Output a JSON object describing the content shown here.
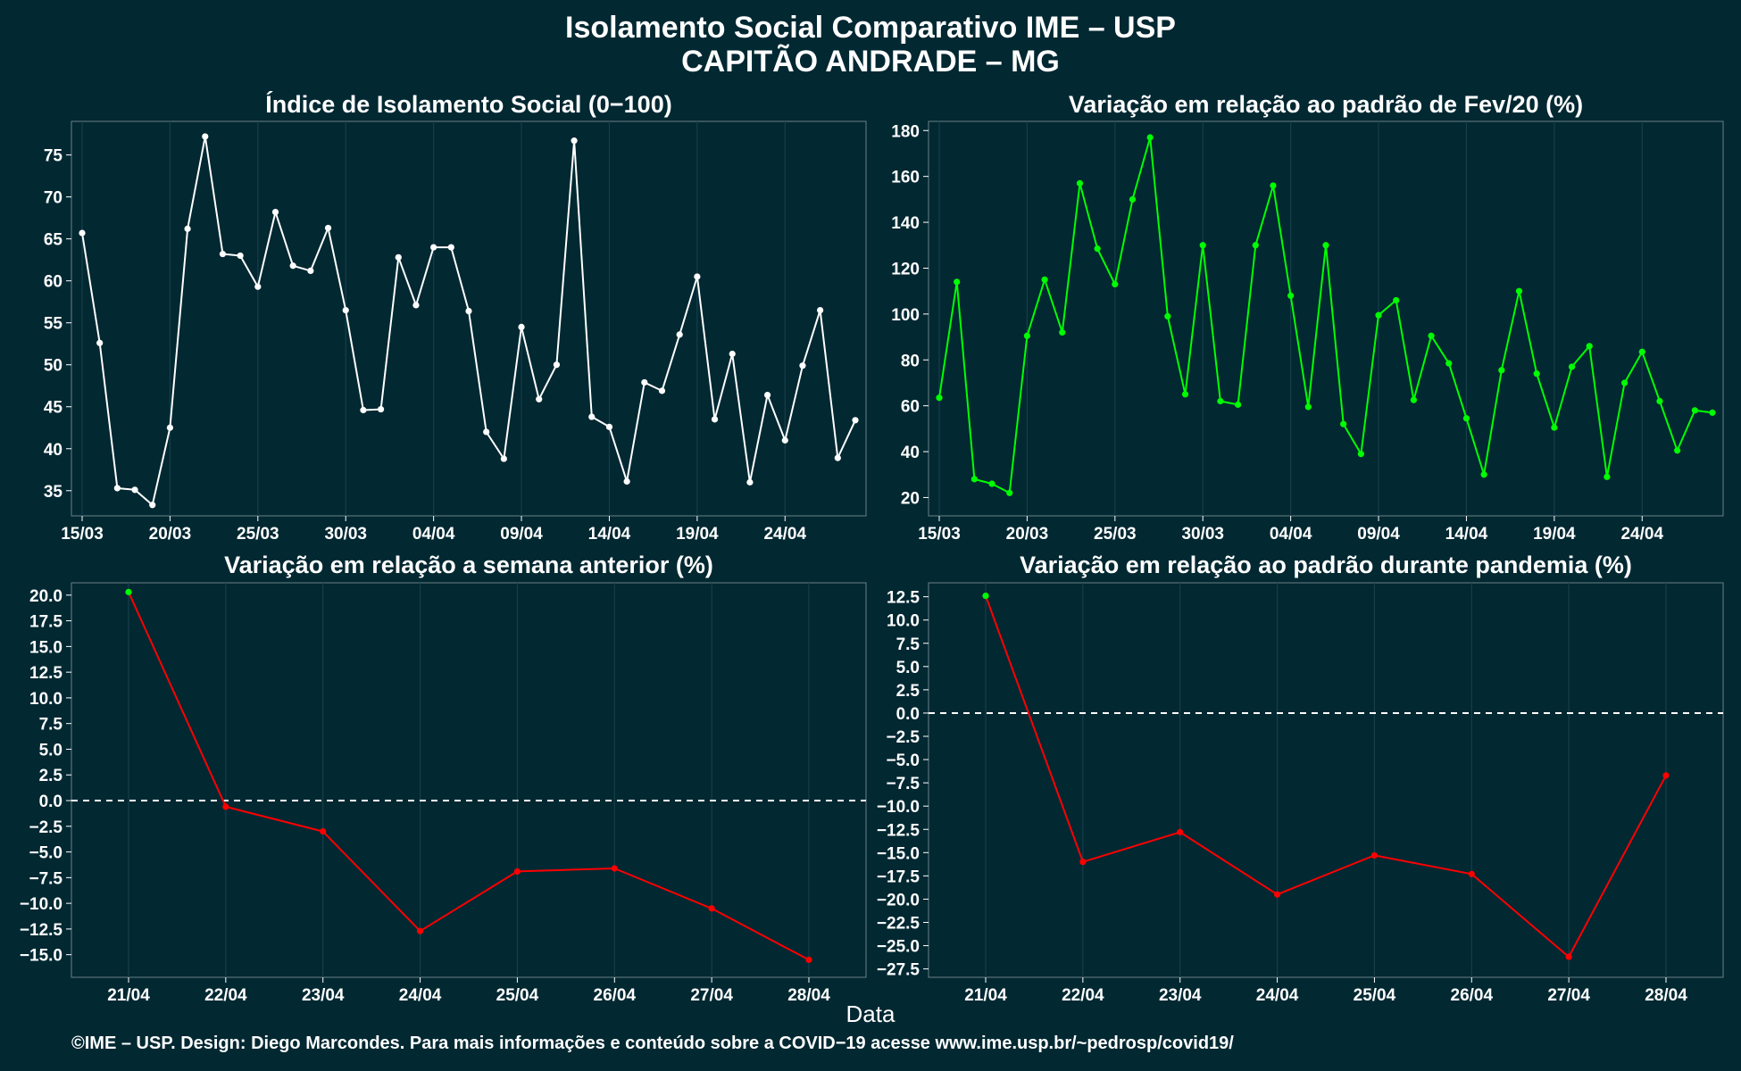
{
  "title_line1": "Isolamento Social Comparativo IME – USP",
  "title_line2": "CAPITÃO ANDRADE – MG",
  "x_label": "Data",
  "footer": "©IME – USP. Design: Diego Marcondes. Para mais informações e conteúdo sobre a COVID−19 acesse www.ime.usp.br/~pedrosp/covid19/",
  "colors": {
    "background": "#022832",
    "white_line": "#ffffff",
    "green_line": "#00ff00",
    "red_line": "#ff0000",
    "green_point": "#00ff00"
  },
  "chart_data": [
    {
      "type": "line",
      "title": "Índice de Isolamento Social (0−100)",
      "x": [
        "15/03",
        "16/03",
        "17/03",
        "18/03",
        "19/03",
        "20/03",
        "21/03",
        "22/03",
        "23/03",
        "24/03",
        "25/03",
        "26/03",
        "27/03",
        "28/03",
        "29/03",
        "30/03",
        "31/03",
        "01/04",
        "02/04",
        "03/04",
        "04/04",
        "05/04",
        "06/04",
        "07/04",
        "08/04",
        "09/04",
        "10/04",
        "11/04",
        "12/04",
        "13/04",
        "14/04",
        "15/04",
        "16/04",
        "17/04",
        "18/04",
        "19/04",
        "20/04",
        "21/04",
        "22/04",
        "23/04",
        "24/04",
        "25/04",
        "26/04",
        "27/04",
        "28/04"
      ],
      "values": [
        65.7,
        52.6,
        35.3,
        35.1,
        33.3,
        42.5,
        66.2,
        77.2,
        63.2,
        63.0,
        59.3,
        68.2,
        61.8,
        61.2,
        66.3,
        56.5,
        44.6,
        44.7,
        62.8,
        57.1,
        64.0,
        64.0,
        56.4,
        42.0,
        38.8,
        54.5,
        45.9,
        50.0,
        76.7,
        43.8,
        42.6,
        36.1,
        47.9,
        46.9,
        53.6,
        60.5,
        43.5,
        51.3,
        36.0,
        46.4,
        41.0,
        49.9,
        56.5,
        38.9,
        43.4
      ],
      "x_ticks": [
        "15/03",
        "20/03",
        "25/03",
        "30/03",
        "04/04",
        "09/04",
        "14/04",
        "19/04",
        "24/04"
      ],
      "y_ticks": [
        "35",
        "40",
        "45",
        "50",
        "55",
        "60",
        "65",
        "70",
        "75"
      ],
      "ylim": [
        32,
        79
      ],
      "series_color": "#ffffff",
      "grid": true
    },
    {
      "type": "line",
      "title": "Variação em relação ao padrão de Fev/20 (%)",
      "x": [
        "15/03",
        "16/03",
        "17/03",
        "18/03",
        "19/03",
        "20/03",
        "21/03",
        "22/03",
        "23/03",
        "24/03",
        "25/03",
        "26/03",
        "27/03",
        "28/03",
        "29/03",
        "30/03",
        "31/03",
        "01/04",
        "02/04",
        "03/04",
        "04/04",
        "05/04",
        "06/04",
        "07/04",
        "08/04",
        "09/04",
        "10/04",
        "11/04",
        "12/04",
        "13/04",
        "14/04",
        "15/04",
        "16/04",
        "17/04",
        "18/04",
        "19/04",
        "20/04",
        "21/04",
        "22/04",
        "23/04",
        "24/04",
        "25/04",
        "26/04",
        "27/04",
        "28/04"
      ],
      "values": [
        63.5,
        114.0,
        28.0,
        26.0,
        22.0,
        90.5,
        115.0,
        92.0,
        157.0,
        128.5,
        113.0,
        150.0,
        177.0,
        99.0,
        65.0,
        130.0,
        62.0,
        60.5,
        130.0,
        156.0,
        108.0,
        59.5,
        130.0,
        52.0,
        39.0,
        99.5,
        106.0,
        62.5,
        90.5,
        78.5,
        54.5,
        30.0,
        75.5,
        110.0,
        74.0,
        50.5,
        77.0,
        86.0,
        29.0,
        70.0,
        83.5,
        62.0,
        40.5,
        58.0,
        57.0
      ],
      "x_ticks": [
        "15/03",
        "20/03",
        "25/03",
        "30/03",
        "04/04",
        "09/04",
        "14/04",
        "19/04",
        "24/04"
      ],
      "y_ticks": [
        "20",
        "40",
        "60",
        "80",
        "100",
        "120",
        "140",
        "160",
        "180"
      ],
      "ylim": [
        12,
        184
      ],
      "series_color": "#00ff00",
      "grid": true
    },
    {
      "type": "line",
      "title": "Variação em relação a semana anterior (%)",
      "x": [
        "21/04",
        "22/04",
        "23/04",
        "24/04",
        "25/04",
        "26/04",
        "27/04",
        "28/04"
      ],
      "values": [
        20.3,
        -0.6,
        -3.0,
        -12.7,
        -6.9,
        -6.6,
        -10.5,
        -15.5
      ],
      "x_ticks": [
        "21/04",
        "22/04",
        "23/04",
        "24/04",
        "25/04",
        "26/04",
        "27/04",
        "28/04"
      ],
      "y_ticks": [
        "−15.0",
        "−12.5",
        "−10.0",
        "−7.5",
        "−5.0",
        "−2.5",
        "0.0",
        "2.5",
        "5.0",
        "7.5",
        "10.0",
        "12.5",
        "15.0",
        "17.5",
        "20.0"
      ],
      "ylim": [
        -17.2,
        21.2
      ],
      "reference_line": 0,
      "series_color": "#ff0000",
      "grid": true
    },
    {
      "type": "line",
      "title": "Variação em relação ao padrão durante pandemia (%)",
      "x": [
        "21/04",
        "22/04",
        "23/04",
        "24/04",
        "25/04",
        "26/04",
        "27/04",
        "28/04"
      ],
      "values": [
        12.6,
        -16.0,
        -12.8,
        -19.5,
        -15.3,
        -17.3,
        -26.2,
        -6.7
      ],
      "x_ticks": [
        "21/04",
        "22/04",
        "23/04",
        "24/04",
        "25/04",
        "26/04",
        "27/04",
        "28/04"
      ],
      "y_ticks": [
        "−27.5",
        "−25.0",
        "−22.5",
        "−20.0",
        "−17.5",
        "−15.0",
        "−12.5",
        "−10.0",
        "−7.5",
        "−5.0",
        "−2.5",
        "0.0",
        "2.5",
        "5.0",
        "7.5",
        "10.0",
        "12.5"
      ],
      "ylim": [
        -28.4,
        14.0
      ],
      "reference_line": 0,
      "series_color": "#ff0000",
      "grid": true
    }
  ]
}
